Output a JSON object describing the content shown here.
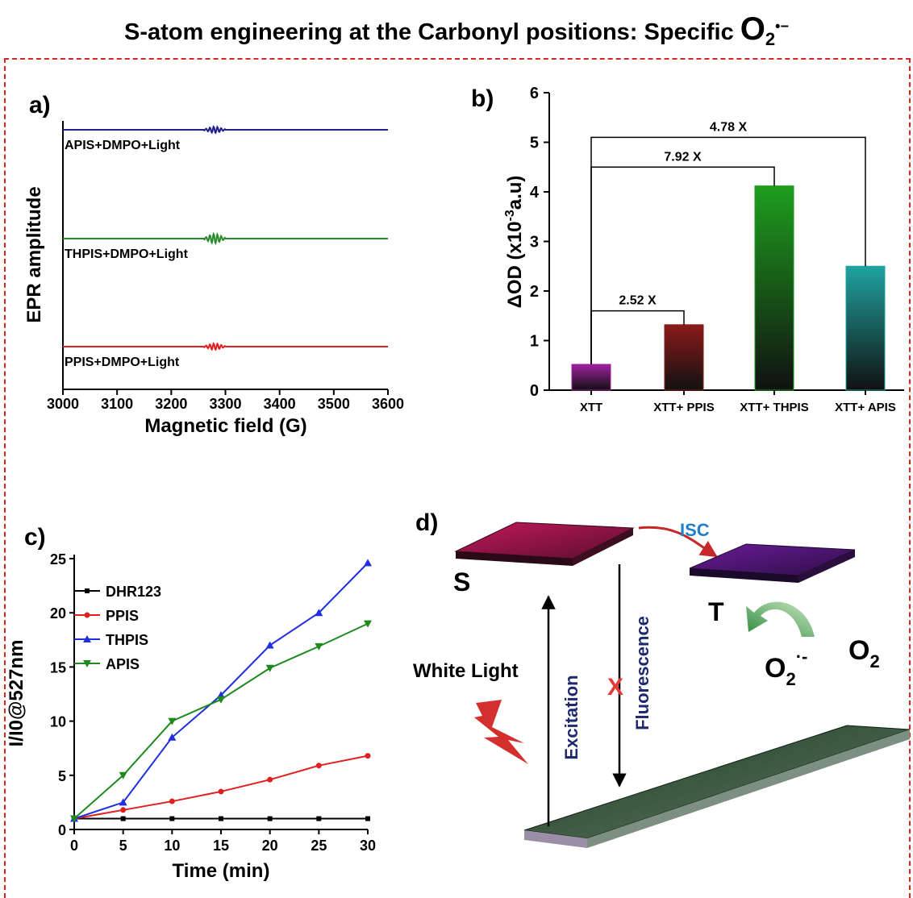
{
  "title": {
    "text": "S-atom engineering at the Carbonyl  positions: Specific ",
    "species": "O",
    "species_sub": "2",
    "species_sup": "•−"
  },
  "chart_data": [
    {
      "panel": "a)",
      "type": "line",
      "xlabel": "Magnetic field (G)",
      "ylabel": "EPR amplitude",
      "xlim": [
        3000,
        3600
      ],
      "xticks": [
        3000,
        3100,
        3200,
        3300,
        3400,
        3500,
        3600
      ],
      "series": [
        {
          "name": "APIS+DMPO+Light",
          "color": "#1f1f8c",
          "signal_center": 3280
        },
        {
          "name": "THPIS+DMPO+Light",
          "color": "#2a8a2a",
          "signal_center": 3280
        },
        {
          "name": "PPIS+DMPO+Light",
          "color": "#e02020",
          "signal_center": 3280
        }
      ]
    },
    {
      "panel": "b)",
      "type": "bar",
      "ylabel": "ΔOD (x10",
      "ylabel_sup": "-3",
      "ylabel_tail": "a.u)",
      "ylim": [
        0,
        6
      ],
      "yticks": [
        0,
        1,
        2,
        3,
        4,
        5,
        6
      ],
      "categories": [
        "XTT",
        "XTT+ PPIS",
        "XTT+ THPIS",
        "XTT+ APIS"
      ],
      "values": [
        0.52,
        1.32,
        4.12,
        2.5
      ],
      "colors": [
        "#a020a0",
        "#8b1a1a",
        "#1e9e1e",
        "#1fa3a0"
      ],
      "annotations": [
        {
          "text": "2.52 X",
          "from": 0,
          "to": 1,
          "level": 1.6
        },
        {
          "text": "7.92 X",
          "from": 0,
          "to": 2,
          "level": 4.5
        },
        {
          "text": "4.78 X",
          "from": 0,
          "to": 3,
          "level": 5.1
        }
      ]
    },
    {
      "panel": "c)",
      "type": "line",
      "xlabel": "Time (min)",
      "ylabel": "I/I0@527nm",
      "xlim": [
        0,
        30
      ],
      "ylim": [
        0,
        25
      ],
      "xticks": [
        0,
        5,
        10,
        15,
        20,
        25,
        30
      ],
      "yticks": [
        0,
        5,
        10,
        15,
        20,
        25
      ],
      "x": [
        0,
        5,
        10,
        15,
        20,
        25,
        30
      ],
      "series": [
        {
          "name": "DHR123",
          "color": "#000000",
          "marker": "square",
          "values": [
            1.0,
            1.0,
            1.0,
            1.0,
            1.0,
            1.0,
            1.0
          ]
        },
        {
          "name": "PPIS",
          "color": "#e02020",
          "marker": "circle",
          "values": [
            1.0,
            1.8,
            2.6,
            3.5,
            4.6,
            5.9,
            6.8
          ]
        },
        {
          "name": "THPIS",
          "color": "#1f2fe0",
          "marker": "triangle-up",
          "values": [
            1.0,
            2.5,
            8.5,
            12.4,
            17.0,
            20.0,
            24.6
          ]
        },
        {
          "name": "APIS",
          "color": "#1e8a1e",
          "marker": "triangle-down",
          "values": [
            1.0,
            5.0,
            10.0,
            12.0,
            14.9,
            16.9,
            19.0
          ]
        }
      ]
    }
  ],
  "diagram_d": {
    "panel": "d)",
    "isc_label": "ISC",
    "singlet_label": "S",
    "triplet_label": "T",
    "white_light_label": "White Light",
    "excitation_label": "Excitation",
    "fluorescence_label": "Fluorescence",
    "blocked_mark": "X",
    "superoxide_main": "O",
    "superoxide_sub": "2",
    "superoxide_sup": "·-",
    "oxygen_main": "O",
    "oxygen_sub": "2"
  }
}
